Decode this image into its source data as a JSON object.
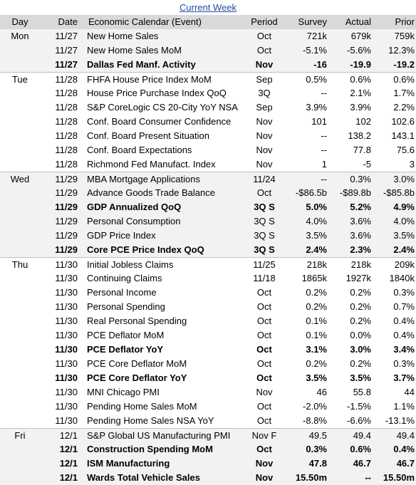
{
  "title": "Current Week",
  "columns": [
    "Day",
    "Date",
    "Economic Calendar (Event)",
    "Period",
    "Survey",
    "Actual",
    "Prior"
  ],
  "groups": [
    {
      "day": "Mon",
      "bold": [
        2
      ],
      "rows": [
        [
          "11/27",
          "New Home Sales",
          "Oct",
          "721k",
          "679k",
          "759k"
        ],
        [
          "11/27",
          "New Home Sales MoM",
          "Oct",
          "-5.1%",
          "-5.6%",
          "12.3%"
        ],
        [
          "11/27",
          "Dallas Fed Manf. Activity",
          "Nov",
          "-16",
          "-19.9",
          "-19.2"
        ]
      ]
    },
    {
      "day": "Tue",
      "bold": [],
      "rows": [
        [
          "11/28",
          "FHFA House Price Index MoM",
          "Sep",
          "0.5%",
          "0.6%",
          "0.6%"
        ],
        [
          "11/28",
          "House Price Purchase Index QoQ",
          "3Q",
          "--",
          "2.1%",
          "1.7%"
        ],
        [
          "11/28",
          "S&P CoreLogic CS 20-City YoY NSA",
          "Sep",
          "3.9%",
          "3.9%",
          "2.2%"
        ],
        [
          "11/28",
          "Conf. Board Consumer Confidence",
          "Nov",
          "101",
          "102",
          "102.6"
        ],
        [
          "11/28",
          "Conf. Board Present Situation",
          "Nov",
          "--",
          "138.2",
          "143.1"
        ],
        [
          "11/28",
          "Conf. Board Expectations",
          "Nov",
          "--",
          "77.8",
          "75.6"
        ],
        [
          "11/28",
          "Richmond Fed Manufact. Index",
          "Nov",
          "1",
          "-5",
          "3"
        ]
      ]
    },
    {
      "day": "Wed",
      "bold": [
        2,
        5
      ],
      "rows": [
        [
          "11/29",
          "MBA Mortgage Applications",
          "11/24",
          "--",
          "0.3%",
          "3.0%"
        ],
        [
          "11/29",
          "Advance Goods Trade Balance",
          "Oct",
          "-$86.5b",
          "-$89.8b",
          "-$85.8b"
        ],
        [
          "11/29",
          "GDP Annualized QoQ",
          "3Q S",
          "5.0%",
          "5.2%",
          "4.9%"
        ],
        [
          "11/29",
          "Personal Consumption",
          "3Q S",
          "4.0%",
          "3.6%",
          "4.0%"
        ],
        [
          "11/29",
          "GDP Price Index",
          "3Q S",
          "3.5%",
          "3.6%",
          "3.5%"
        ],
        [
          "11/29",
          "Core PCE Price Index QoQ",
          "3Q S",
          "2.4%",
          "2.3%",
          "2.4%"
        ]
      ]
    },
    {
      "day": "Thu",
      "bold": [
        6,
        8
      ],
      "rows": [
        [
          "11/30",
          "Initial Jobless Claims",
          "11/25",
          "218k",
          "218k",
          "209k"
        ],
        [
          "11/30",
          "Continuing Claims",
          "11/18",
          "1865k",
          "1927k",
          "1840k"
        ],
        [
          "11/30",
          "Personal Income",
          "Oct",
          "0.2%",
          "0.2%",
          "0.3%"
        ],
        [
          "11/30",
          "Personal Spending",
          "Oct",
          "0.2%",
          "0.2%",
          "0.7%"
        ],
        [
          "11/30",
          "Real Personal Spending",
          "Oct",
          "0.1%",
          "0.2%",
          "0.4%"
        ],
        [
          "11/30",
          "PCE Deflator MoM",
          "Oct",
          "0.1%",
          "0.0%",
          "0.4%"
        ],
        [
          "11/30",
          "PCE Deflator YoY",
          "Oct",
          "3.1%",
          "3.0%",
          "3.4%"
        ],
        [
          "11/30",
          "PCE Core Deflator MoM",
          "Oct",
          "0.2%",
          "0.2%",
          "0.3%"
        ],
        [
          "11/30",
          "PCE Core Deflator YoY",
          "Oct",
          "3.5%",
          "3.5%",
          "3.7%"
        ],
        [
          "11/30",
          "MNI Chicago PMI",
          "Nov",
          "46",
          "55.8",
          "44"
        ],
        [
          "11/30",
          "Pending Home Sales MoM",
          "Oct",
          "-2.0%",
          "-1.5%",
          "1.1%"
        ],
        [
          "11/30",
          "Pending Home Sales NSA YoY",
          "Oct",
          "-8.8%",
          "-6.6%",
          "-13.1%"
        ]
      ]
    },
    {
      "day": "Fri",
      "bold": [
        1,
        2,
        3
      ],
      "rows": [
        [
          "12/1",
          "S&P Global US Manufacturing PMI",
          "Nov F",
          "49.5",
          "49.4",
          "49.4"
        ],
        [
          "12/1",
          "Construction Spending MoM",
          "Oct",
          "0.3%",
          "0.6%",
          "0.4%"
        ],
        [
          "12/1",
          "ISM Manufacturing",
          "Nov",
          "47.8",
          "46.7",
          "46.7"
        ],
        [
          "12/1",
          "Wards Total Vehicle Sales",
          "Nov",
          "15.50m",
          "--",
          "15.50m"
        ]
      ]
    }
  ]
}
